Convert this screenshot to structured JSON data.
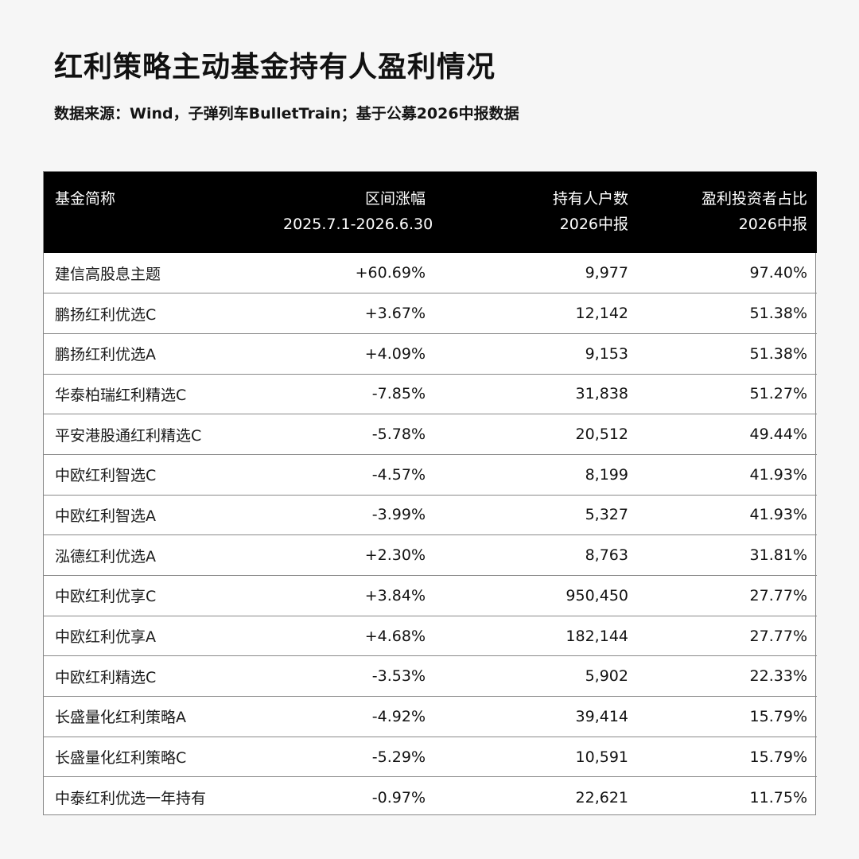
{
  "title": "红利策略主动基金持有人盈利情况",
  "subtitle": "数据来源：Wind，子弹列车BulletTrain；基于公募2026中报数据",
  "colors": {
    "positive": "#e0393e",
    "negative": "#1fae63",
    "header_bg": "#000000",
    "header_text": "#ffffff"
  },
  "table": {
    "headers": [
      {
        "line1": "基金简称",
        "line2": ""
      },
      {
        "line1": "区间涨幅",
        "line2": "2025.7.1-2026.6.30"
      },
      {
        "line1": "持有人户数",
        "line2": "2026中报"
      },
      {
        "line1": "盈利投资者占比",
        "line2": "2026中报"
      }
    ],
    "rows": [
      {
        "name": "建信高股息主题",
        "change": "+60.69%",
        "holders": "9,977",
        "profit_ratio": "97.40%"
      },
      {
        "name": "鹏扬红利优选C",
        "change": "+3.67%",
        "holders": "12,142",
        "profit_ratio": "51.38%"
      },
      {
        "name": "鹏扬红利优选A",
        "change": "+4.09%",
        "holders": "9,153",
        "profit_ratio": "51.38%"
      },
      {
        "name": "华泰柏瑞红利精选C",
        "change": "-7.85%",
        "holders": "31,838",
        "profit_ratio": "51.27%"
      },
      {
        "name": "平安港股通红利精选C",
        "change": "-5.78%",
        "holders": "20,512",
        "profit_ratio": "49.44%"
      },
      {
        "name": "中欧红利智选C",
        "change": "-4.57%",
        "holders": "8,199",
        "profit_ratio": "41.93%"
      },
      {
        "name": "中欧红利智选A",
        "change": "-3.99%",
        "holders": "5,327",
        "profit_ratio": "41.93%"
      },
      {
        "name": "泓德红利优选A",
        "change": "+2.30%",
        "holders": "8,763",
        "profit_ratio": "31.81%"
      },
      {
        "name": "中欧红利优享C",
        "change": "+3.84%",
        "holders": "950,450",
        "profit_ratio": "27.77%"
      },
      {
        "name": "中欧红利优享A",
        "change": "+4.68%",
        "holders": "182,144",
        "profit_ratio": "27.77%"
      },
      {
        "name": "中欧红利精选C",
        "change": "-3.53%",
        "holders": "5,902",
        "profit_ratio": "22.33%"
      },
      {
        "name": "长盛量化红利策略A",
        "change": "-4.92%",
        "holders": "39,414",
        "profit_ratio": "15.79%"
      },
      {
        "name": "长盛量化红利策略C",
        "change": "-5.29%",
        "holders": "10,591",
        "profit_ratio": "15.79%"
      },
      {
        "name": "中泰红利优选一年持有",
        "change": "-0.97%",
        "holders": "22,621",
        "profit_ratio": "11.75%"
      }
    ]
  }
}
